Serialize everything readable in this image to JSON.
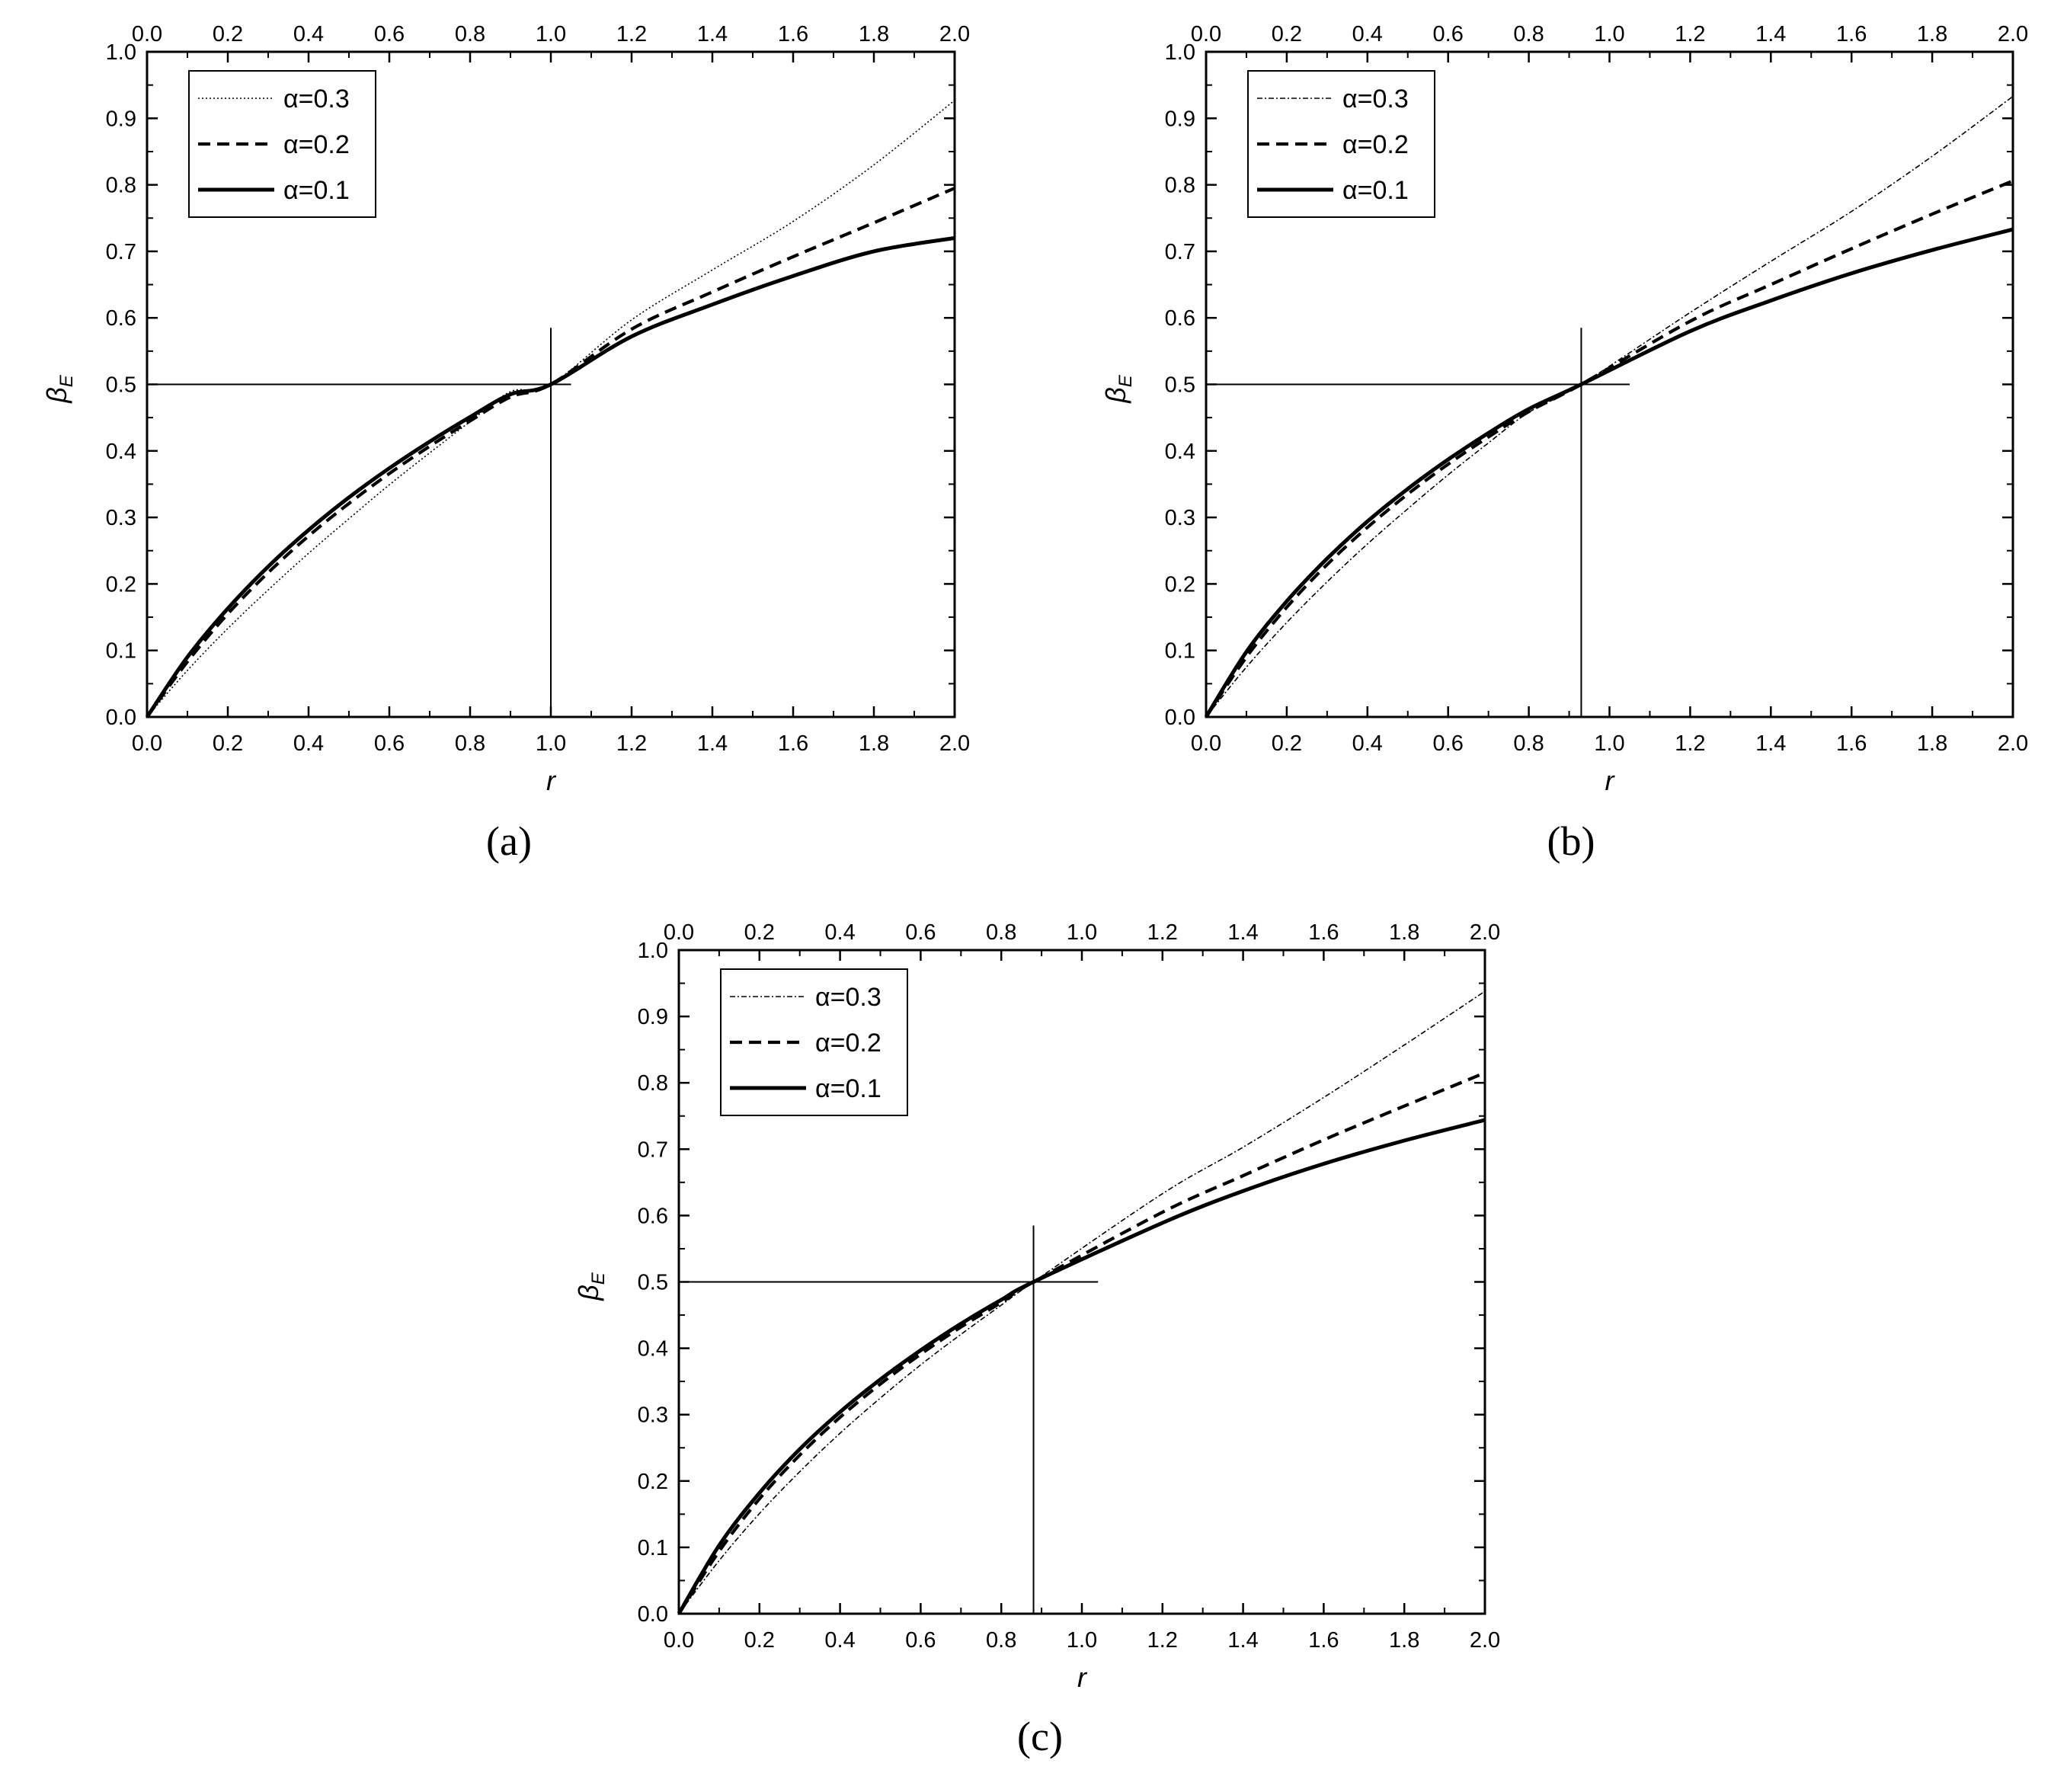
{
  "chart_data": [
    {
      "type": "line",
      "panel_label": "(a)",
      "xlabel": "r",
      "ylabel": "β",
      "ylabel_subscript": "E",
      "xlim": [
        0,
        2
      ],
      "ylim": [
        0,
        1
      ],
      "x_ticks": [
        "0.0",
        "0.2",
        "0.4",
        "0.6",
        "0.8",
        "1.0",
        "1.2",
        "1.4",
        "1.6",
        "1.8",
        "2.0"
      ],
      "y_ticks": [
        "0.0",
        "0.1",
        "0.2",
        "0.3",
        "0.4",
        "0.5",
        "0.6",
        "0.7",
        "0.8",
        "0.9",
        "1.0"
      ],
      "top_axis_ticks": true,
      "grid": false,
      "legend_position": "top-left",
      "series": [
        {
          "name": "α=0.3",
          "style": "dotted-thin",
          "x": [
            0,
            0.1,
            0.2,
            0.3,
            0.4,
            0.5,
            0.6,
            0.7,
            0.8,
            0.9,
            1.0,
            1.2,
            1.4,
            1.6,
            1.8,
            2.0
          ],
          "y": [
            0,
            0.07,
            0.133,
            0.191,
            0.246,
            0.298,
            0.349,
            0.397,
            0.444,
            0.489,
            0.5,
            0.597,
            0.672,
            0.745,
            0.83,
            0.927
          ]
        },
        {
          "name": "α=0.2",
          "style": "dashed",
          "x": [
            0,
            0.1,
            0.2,
            0.3,
            0.4,
            0.5,
            0.6,
            0.7,
            0.8,
            0.9,
            1.0,
            1.2,
            1.4,
            1.6,
            1.8,
            2.0
          ],
          "y": [
            0,
            0.083,
            0.155,
            0.217,
            0.272,
            0.321,
            0.366,
            0.407,
            0.445,
            0.481,
            0.5,
            0.583,
            0.639,
            0.692,
            0.743,
            0.795
          ]
        },
        {
          "name": "α=0.1",
          "style": "solid-thick",
          "x": [
            0,
            0.1,
            0.2,
            0.3,
            0.4,
            0.5,
            0.6,
            0.7,
            0.8,
            0.9,
            1.0,
            1.2,
            1.4,
            1.6,
            1.8,
            2.0
          ],
          "y": [
            0,
            0.09,
            0.163,
            0.226,
            0.281,
            0.33,
            0.374,
            0.414,
            0.451,
            0.485,
            0.5,
            0.572,
            0.62,
            0.663,
            0.7,
            0.72
          ]
        }
      ],
      "reference_point": {
        "x": 1.0,
        "y": 0.5
      },
      "reference_lines": {
        "horizontal_y": 0.5,
        "horizontal_x_range": [
          0,
          1.05
        ],
        "vertical_x": 1.0,
        "vertical_y_range": [
          0,
          0.585
        ]
      }
    },
    {
      "type": "line",
      "panel_label": "(b)",
      "xlabel": "r",
      "ylabel": "β",
      "ylabel_subscript": "E",
      "xlim": [
        0,
        2
      ],
      "ylim": [
        0,
        1
      ],
      "x_ticks": [
        "0.0",
        "0.2",
        "0.4",
        "0.6",
        "0.8",
        "1.0",
        "1.2",
        "1.4",
        "1.6",
        "1.8",
        "2.0"
      ],
      "y_ticks": [
        "0.0",
        "0.1",
        "0.2",
        "0.3",
        "0.4",
        "0.5",
        "0.6",
        "0.7",
        "0.8",
        "0.9",
        "1.0"
      ],
      "top_axis_ticks": true,
      "grid": false,
      "legend_position": "top-left",
      "series": [
        {
          "name": "α=0.3",
          "style": "dashdot-thin",
          "x": [
            0,
            0.1,
            0.2,
            0.3,
            0.4,
            0.5,
            0.6,
            0.7,
            0.8,
            0.93,
            1.2,
            1.4,
            1.6,
            1.8,
            2.0
          ],
          "y": [
            0,
            0.075,
            0.142,
            0.203,
            0.26,
            0.313,
            0.364,
            0.412,
            0.458,
            0.5,
            0.608,
            0.685,
            0.76,
            0.843,
            0.933
          ]
        },
        {
          "name": "α=0.2",
          "style": "dashed",
          "x": [
            0,
            0.1,
            0.2,
            0.3,
            0.4,
            0.5,
            0.6,
            0.7,
            0.8,
            0.93,
            1.2,
            1.4,
            1.6,
            1.8,
            2.0
          ],
          "y": [
            0,
            0.09,
            0.165,
            0.229,
            0.285,
            0.335,
            0.38,
            0.421,
            0.459,
            0.5,
            0.595,
            0.65,
            0.704,
            0.756,
            0.806
          ]
        },
        {
          "name": "α=0.1",
          "style": "solid-thick",
          "x": [
            0,
            0.1,
            0.2,
            0.3,
            0.4,
            0.5,
            0.6,
            0.7,
            0.8,
            0.93,
            1.2,
            1.4,
            1.6,
            1.8,
            2.0
          ],
          "y": [
            0,
            0.098,
            0.174,
            0.238,
            0.294,
            0.343,
            0.387,
            0.427,
            0.463,
            0.5,
            0.58,
            0.626,
            0.667,
            0.702,
            0.733
          ]
        }
      ],
      "reference_point": {
        "x": 0.93,
        "y": 0.5
      },
      "reference_lines": {
        "horizontal_y": 0.5,
        "horizontal_x_range": [
          0,
          1.05
        ],
        "vertical_x": 0.93,
        "vertical_y_range": [
          0,
          0.585
        ]
      }
    },
    {
      "type": "line",
      "panel_label": "(c)",
      "xlabel": "r",
      "ylabel": "β",
      "ylabel_subscript": "E",
      "xlim": [
        0,
        2
      ],
      "ylim": [
        0,
        1
      ],
      "x_ticks": [
        "0.0",
        "0.2",
        "0.4",
        "0.6",
        "0.8",
        "1.0",
        "1.2",
        "1.4",
        "1.6",
        "1.8",
        "2.0"
      ],
      "y_ticks": [
        "0.0",
        "0.1",
        "0.2",
        "0.3",
        "0.4",
        "0.5",
        "0.6",
        "0.7",
        "0.8",
        "0.9",
        "1.0"
      ],
      "top_axis_ticks": true,
      "grid": false,
      "legend_position": "top-left",
      "series": [
        {
          "name": "α=0.3",
          "style": "dashdot-thin",
          "x": [
            0,
            0.1,
            0.2,
            0.3,
            0.4,
            0.5,
            0.6,
            0.7,
            0.8,
            0.88,
            1.2,
            1.4,
            1.6,
            1.8,
            2.0
          ],
          "y": [
            0,
            0.08,
            0.151,
            0.214,
            0.272,
            0.325,
            0.375,
            0.421,
            0.465,
            0.5,
            0.633,
            0.703,
            0.778,
            0.857,
            0.938
          ]
        },
        {
          "name": "α=0.2",
          "style": "dashed",
          "x": [
            0,
            0.1,
            0.2,
            0.3,
            0.4,
            0.5,
            0.6,
            0.7,
            0.8,
            0.88,
            1.2,
            1.4,
            1.6,
            1.8,
            2.0
          ],
          "y": [
            0,
            0.094,
            0.173,
            0.239,
            0.296,
            0.346,
            0.391,
            0.432,
            0.469,
            0.5,
            0.605,
            0.66,
            0.714,
            0.765,
            0.815
          ]
        },
        {
          "name": "α=0.1",
          "style": "solid-thick",
          "x": [
            0,
            0.1,
            0.2,
            0.3,
            0.4,
            0.5,
            0.6,
            0.7,
            0.8,
            0.88,
            1.2,
            1.4,
            1.6,
            1.8,
            2.0
          ],
          "y": [
            0,
            0.103,
            0.182,
            0.248,
            0.304,
            0.353,
            0.397,
            0.437,
            0.473,
            0.5,
            0.589,
            0.637,
            0.678,
            0.713,
            0.744
          ]
        }
      ],
      "reference_point": {
        "x": 0.88,
        "y": 0.5
      },
      "reference_lines": {
        "horizontal_y": 0.5,
        "horizontal_x_range": [
          0,
          1.04
        ],
        "vertical_x": 0.88,
        "vertical_y_range": [
          0,
          0.585
        ]
      }
    }
  ]
}
